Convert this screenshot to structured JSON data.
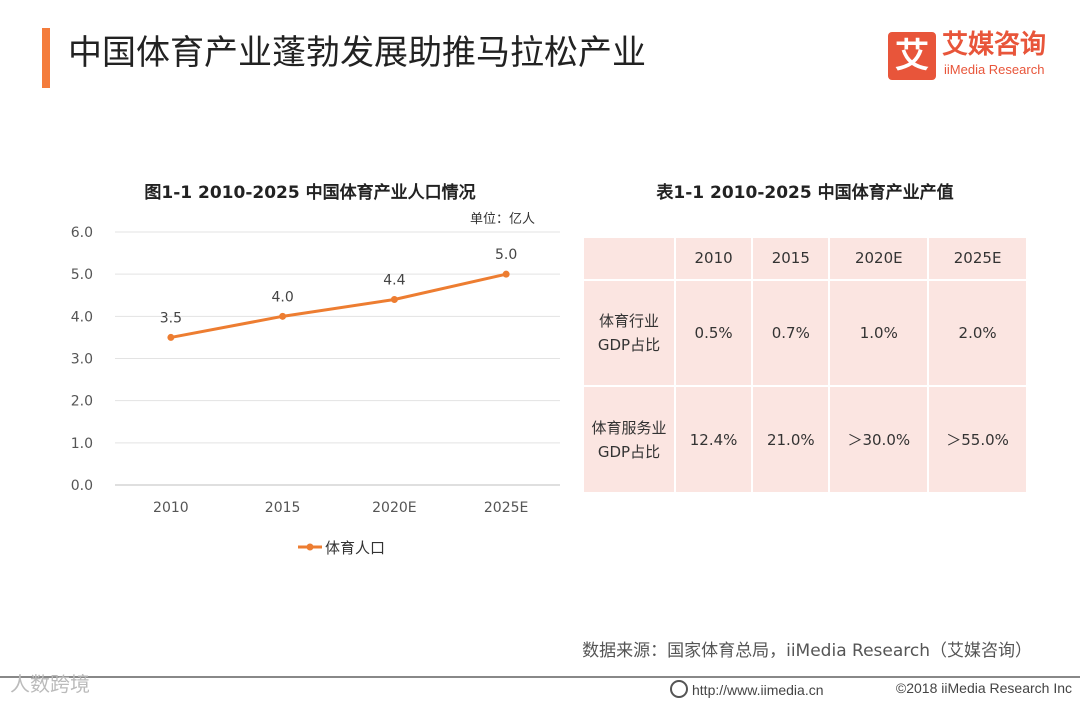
{
  "header": {
    "title": "中国体育产业蓬勃发展助推马拉松产业",
    "logo_mark": "艾",
    "logo_cn": "艾媒咨询",
    "logo_en": "iiMedia Research"
  },
  "chart_data": {
    "type": "line",
    "title": "图1-1 2010-2025 中国体育产业人口情况",
    "unit": "单位：亿人",
    "categories": [
      "2010",
      "2015",
      "2020E",
      "2025E"
    ],
    "series": [
      {
        "name": "体育人口",
        "values": [
          3.5,
          4.0,
          4.4,
          5.0
        ],
        "color": "#ed7d31"
      }
    ],
    "value_labels": [
      "3.5",
      "4.0",
      "4.4",
      "5.0"
    ],
    "ylim": [
      0,
      6
    ],
    "yticks": [
      "0.0",
      "1.0",
      "2.0",
      "3.0",
      "4.0",
      "5.0",
      "6.0"
    ],
    "legend": "bottom"
  },
  "table": {
    "title": "表1-1 2010-2025 中国体育产业产值",
    "headers": [
      "",
      "2010",
      "2015",
      "2020E",
      "2025E"
    ],
    "rows": [
      {
        "label_line1": "体育行业",
        "label_line2": "GDP占比",
        "values": [
          "0.5%",
          "0.7%",
          "1.0%",
          "2.0%"
        ]
      },
      {
        "label_line1": "体育服务业",
        "label_line2": "GDP占比",
        "values": [
          "12.4%",
          "21.0%",
          "＞30.0%",
          "＞55.0%"
        ]
      }
    ]
  },
  "source": "数据来源：国家体育总局，iiMedia Research（艾媒咨询）",
  "watermark": "人数跨境",
  "footer": {
    "url": "http://www.iimedia.cn",
    "copyright": "©2018  iiMedia Research  Inc"
  }
}
